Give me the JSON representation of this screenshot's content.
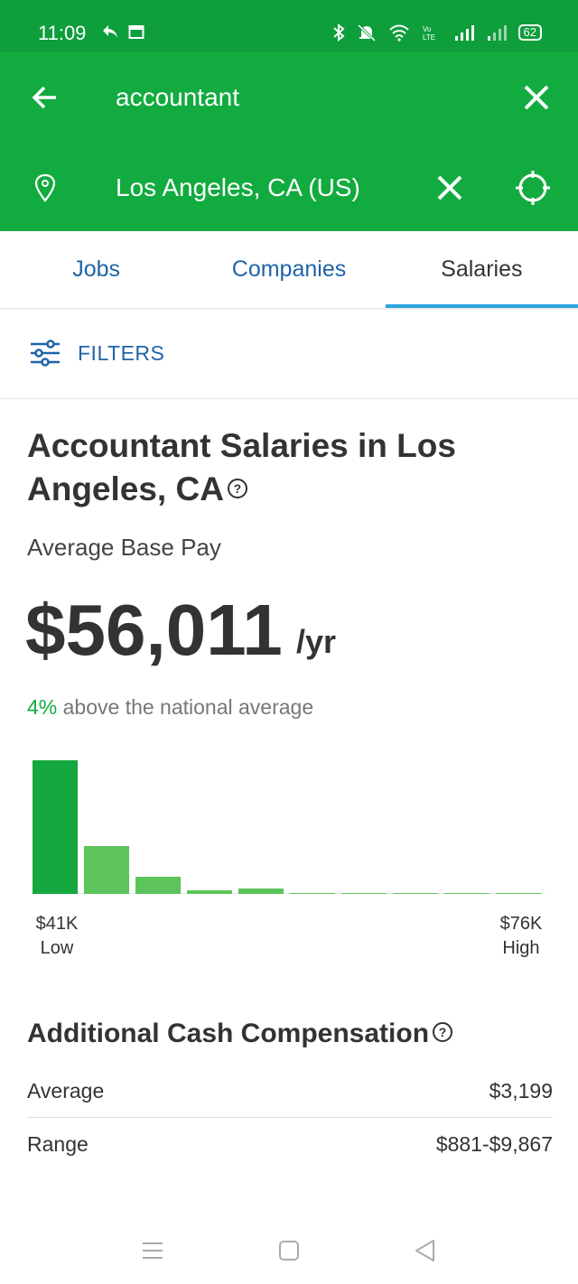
{
  "status_bar": {
    "time": "11:09",
    "battery": "62"
  },
  "search": {
    "query": "accountant",
    "location": "Los Angeles, CA (US)"
  },
  "tabs": [
    {
      "label": "Jobs",
      "active": false
    },
    {
      "label": "Companies",
      "active": false
    },
    {
      "label": "Salaries",
      "active": true
    }
  ],
  "filters": {
    "label": "FILTERS"
  },
  "salary": {
    "title": "Accountant Salaries in Los Angeles, CA",
    "avg_label": "Average Base Pay",
    "amount": "$56,011",
    "unit": "/yr",
    "compare_pct": "4%",
    "compare_text": "above the national average"
  },
  "histogram": {
    "relative_heights": [
      1.0,
      0.36,
      0.13,
      0.03,
      0.04,
      0.007,
      0.01,
      0.007,
      0.004,
      0.003
    ],
    "low_value": "$41K",
    "low_label": "Low",
    "high_value": "$76K",
    "high_label": "High"
  },
  "additional_comp": {
    "title": "Additional Cash Compensation",
    "average_label": "Average",
    "average_value": "$3,199",
    "range_label": "Range",
    "range_value": "$881-$9,867"
  },
  "colors": {
    "header_green": "#12ab3f",
    "status_green": "#0e9e3c",
    "link_blue": "#1f64a8",
    "tab_indicator": "#2aa6df",
    "bar_dark": "#14a83e",
    "bar_light": "#5cc45a"
  }
}
